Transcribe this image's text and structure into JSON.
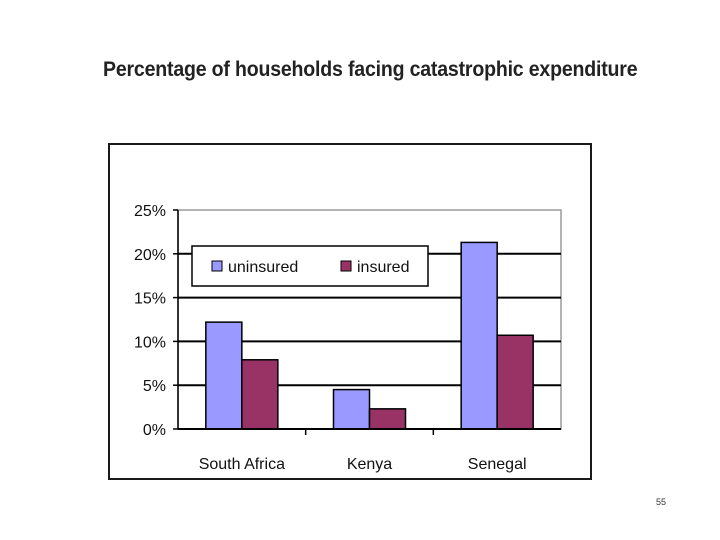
{
  "slide": {
    "page_number": "55"
  },
  "colors": {
    "uninsured": "#9999FF",
    "insured": "#993366",
    "grid": "#000000",
    "plot_background": "#FFFFFF"
  },
  "chart_data": {
    "type": "bar",
    "title": "Percentage of households facing catastrophic expenditure",
    "categories": [
      "South Africa",
      "Kenya",
      "Senegal"
    ],
    "series": [
      {
        "name": "uninsured",
        "values": [
          12.2,
          4.5,
          21.3
        ]
      },
      {
        "name": "insured",
        "values": [
          7.9,
          2.3,
          10.7
        ]
      }
    ],
    "ylim": [
      0,
      25
    ],
    "yticks": [
      "0%",
      "5%",
      "10%",
      "15%",
      "20%",
      "25%"
    ],
    "ytick_values": [
      0,
      5,
      10,
      15,
      20,
      25
    ],
    "xlabel": "",
    "ylabel": "",
    "grid": true,
    "legend": [
      "uninsured",
      "insured"
    ],
    "legend_position": "top-left"
  }
}
